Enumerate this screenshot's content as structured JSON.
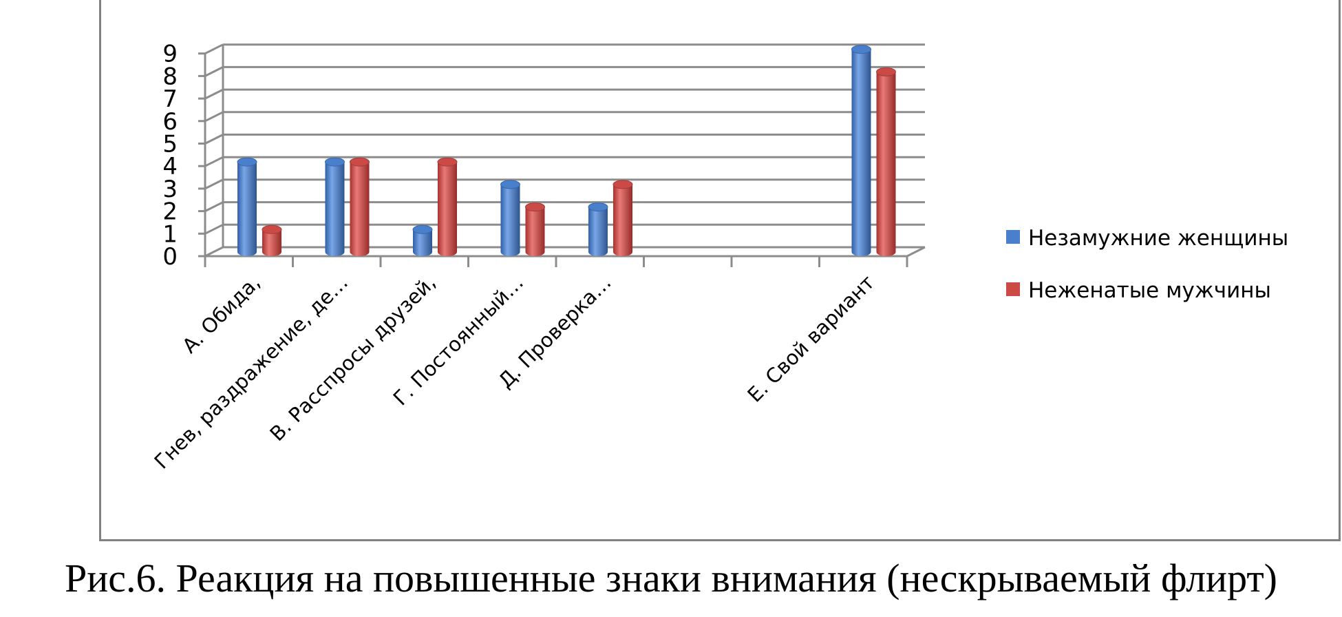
{
  "caption": "Рис.6. Реакция на повышенные знаки внимания (нескрываемый флирт)",
  "chart_data": {
    "type": "bar",
    "style": "3d-cylinder",
    "categories": [
      "А. Обида,",
      "Гнев, раздражение, де…",
      "В. Расспросы друзей,",
      "Г. Постоянный…",
      "Д. Проверка…",
      "",
      "",
      "Е. Свой вариант"
    ],
    "series": [
      {
        "name": "Незамужние женщины",
        "color": "#4a7fcc",
        "values": [
          4,
          4,
          1,
          3,
          2,
          0,
          0,
          9
        ]
      },
      {
        "name": "Неженатые мужчины",
        "color": "#cc4a46",
        "values": [
          1,
          4,
          4,
          2,
          3,
          0,
          0,
          8
        ]
      }
    ],
    "ylim": [
      0,
      9
    ],
    "yticks": [
      "0",
      "1",
      "2",
      "3",
      "4",
      "5",
      "6",
      "7",
      "8",
      "9"
    ],
    "grid": true,
    "legend": "right"
  }
}
